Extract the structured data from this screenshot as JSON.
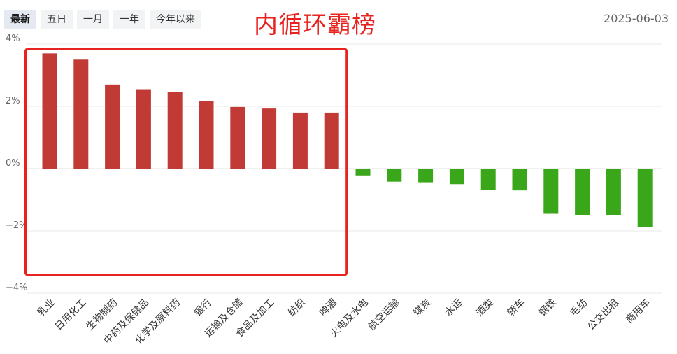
{
  "tabs": [
    {
      "label": "最新",
      "active": true
    },
    {
      "label": "五日",
      "active": false
    },
    {
      "label": "一月",
      "active": false
    },
    {
      "label": "一年",
      "active": false
    },
    {
      "label": "今年以来",
      "active": false
    }
  ],
  "date": "2025-06-03",
  "annotation_title": "内循环霸榜",
  "colors": {
    "positive": "#c23a35",
    "negative": "#3aa619",
    "highlight_box": "#e8231f"
  },
  "chart_data": {
    "type": "bar",
    "categories": [
      "乳业",
      "日用化工",
      "生物制药",
      "中药及保健品",
      "化学及原料药",
      "银行",
      "运输及仓储",
      "食品及加工",
      "纺织",
      "啤酒",
      "火电及水电",
      "航空运输",
      "煤炭",
      "水运",
      "酒类",
      "轿车",
      "钢铁",
      "毛纺",
      "公交出租",
      "商用车"
    ],
    "values": [
      3.7,
      3.5,
      2.7,
      2.55,
      2.47,
      2.18,
      1.98,
      1.93,
      1.8,
      1.8,
      -0.22,
      -0.42,
      -0.44,
      -0.5,
      -0.68,
      -0.7,
      -1.45,
      -1.5,
      -1.5,
      -1.88
    ],
    "ylim": [
      -4,
      4
    ],
    "yticks": [
      4,
      2,
      0,
      -2,
      -4
    ],
    "ytick_labels": [
      "4%",
      "2%",
      "0%",
      "−2%",
      "−4%"
    ],
    "grid": true,
    "highlight_categories": [
      "乳业",
      "日用化工",
      "生物制药",
      "中药及保健品",
      "化学及原料药",
      "银行",
      "运输及仓储",
      "食品及加工",
      "纺织",
      "啤酒"
    ]
  }
}
